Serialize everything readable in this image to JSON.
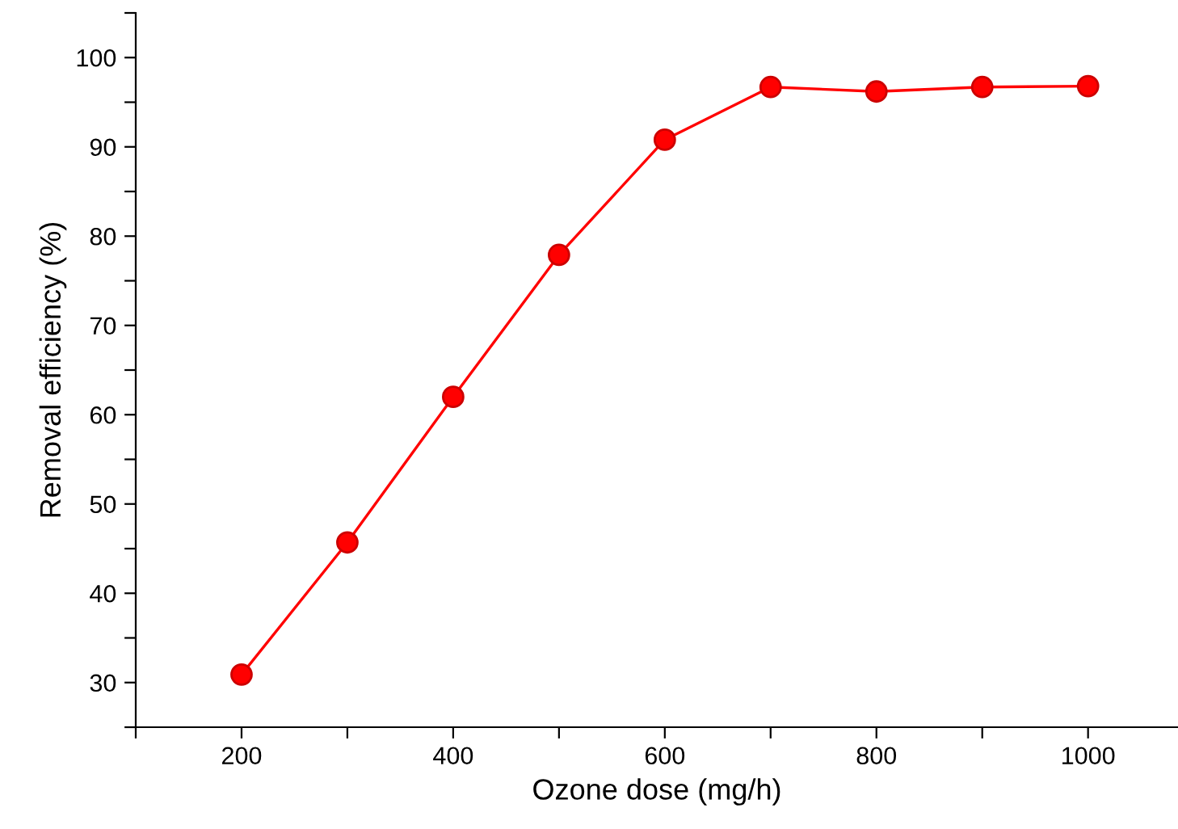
{
  "chart_data": {
    "type": "line",
    "xlabel": "Ozone dose (mg/h)",
    "ylabel": "Removal efficiency (%)",
    "x": [
      200,
      300,
      400,
      500,
      600,
      700,
      800,
      900,
      1000
    ],
    "series": [
      {
        "color": "#ff0000",
        "values": [
          30.9,
          45.7,
          62.0,
          77.9,
          90.8,
          96.7,
          96.2,
          96.7,
          96.8
        ]
      }
    ],
    "xlim": [
      100,
      1085
    ],
    "ylim": [
      25,
      105
    ],
    "xticks": [
      {
        "value": 100,
        "label": null
      },
      200,
      {
        "value": 300,
        "label": null
      },
      400,
      {
        "value": 500,
        "label": null
      },
      600,
      {
        "value": 700,
        "label": null
      },
      800,
      {
        "value": 900,
        "label": null
      },
      1000
    ],
    "yticks": [
      {
        "value": 25,
        "label": null
      },
      30,
      {
        "value": 35,
        "label": null
      },
      40,
      {
        "value": 45,
        "label": null
      },
      50,
      {
        "value": 55,
        "label": null
      },
      60,
      {
        "value": 65,
        "label": null
      },
      70,
      {
        "value": 75,
        "label": null
      },
      80,
      {
        "value": 85,
        "label": null
      },
      90,
      {
        "value": 95,
        "label": null
      },
      100,
      {
        "value": 105,
        "label": null
      }
    ],
    "marker": "circle",
    "line_style": "solid",
    "grid": false,
    "legend": false
  }
}
